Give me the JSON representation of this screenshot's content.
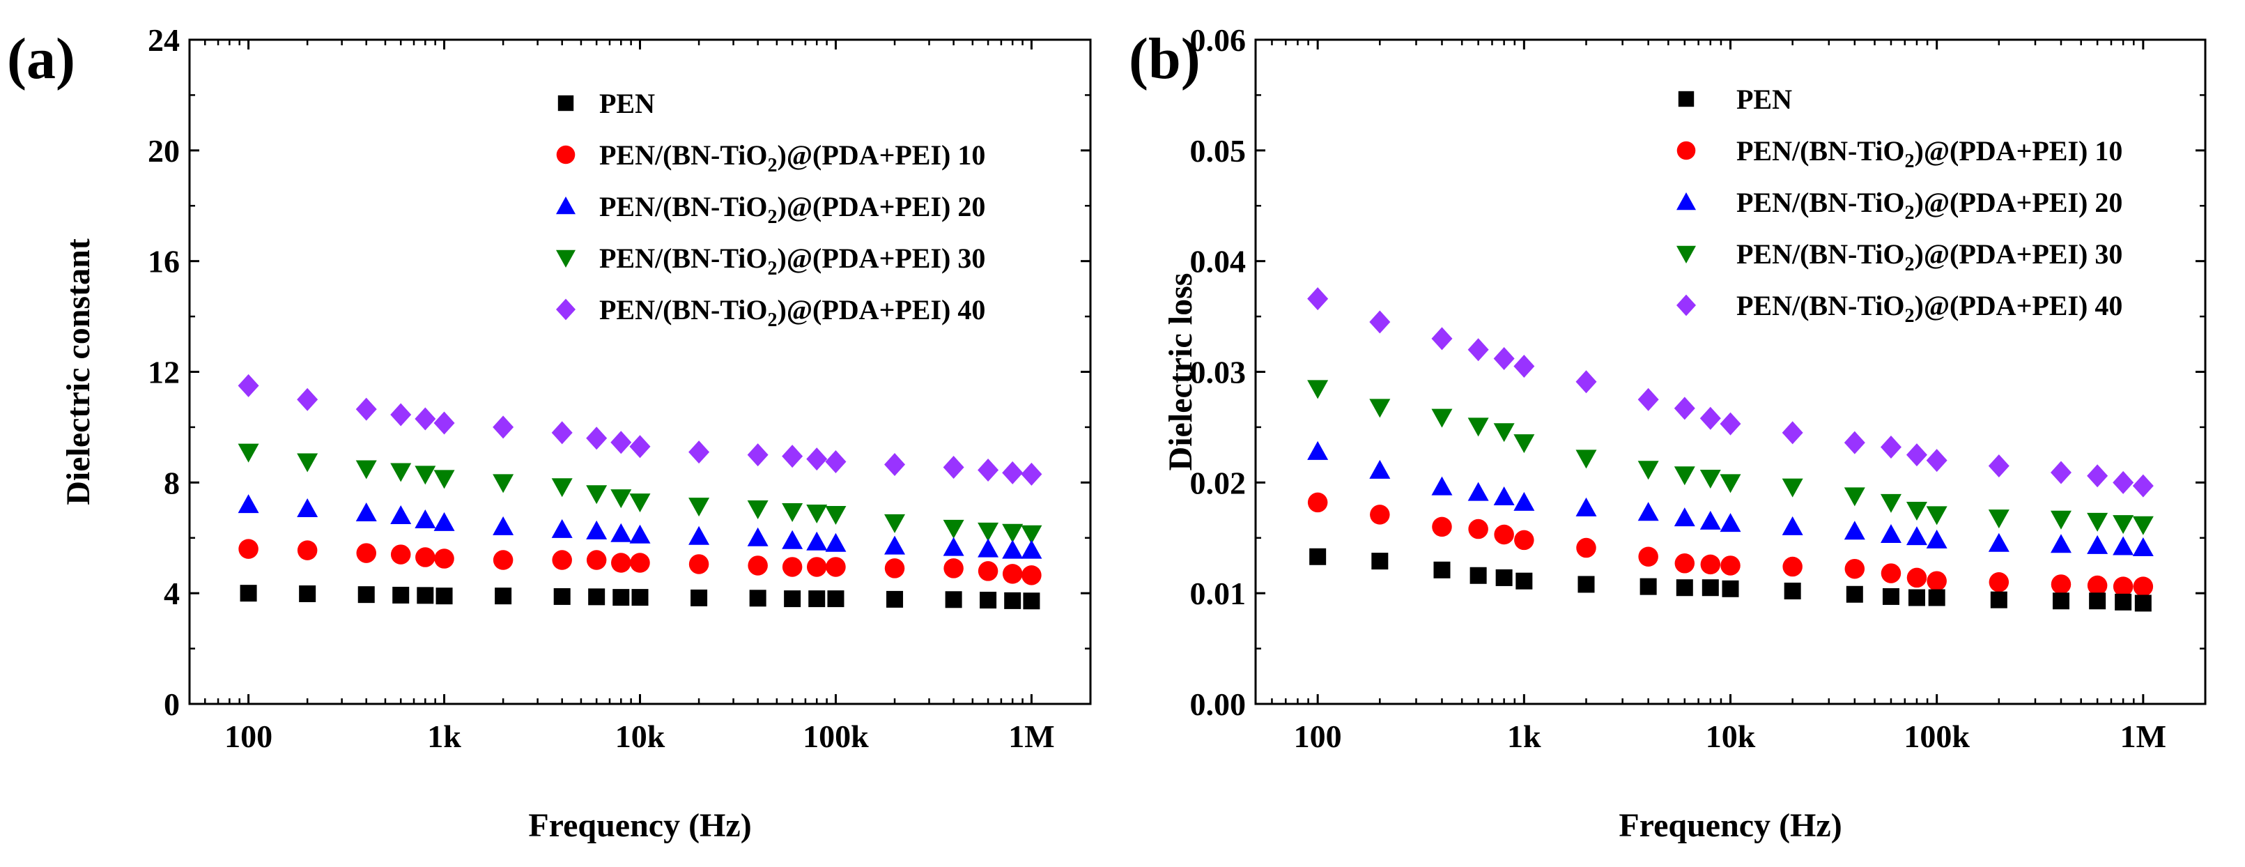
{
  "chart_data": [
    {
      "type": "scatter",
      "panel_label": "(a)",
      "xlabel": "Frequency (Hz)",
      "ylabel": "Dielectric constant",
      "xscale": "log",
      "xlim": [
        50,
        2000000
      ],
      "ylim": [
        0,
        24
      ],
      "xticks": [
        100,
        1000,
        10000,
        100000,
        1000000
      ],
      "xtick_labels": [
        "100",
        "1k",
        "10k",
        "100k",
        "1M"
      ],
      "yticks": [
        0,
        4,
        8,
        12,
        16,
        20,
        24
      ],
      "ytick_labels": [
        "0",
        "4",
        "8",
        "12",
        "16",
        "20",
        "24"
      ],
      "legend_position": "top-right",
      "x": [
        100,
        200,
        400,
        600,
        800,
        1000,
        2000,
        4000,
        6000,
        8000,
        10000,
        20000,
        40000,
        60000,
        80000,
        100000,
        200000,
        400000,
        600000,
        800000,
        1000000
      ],
      "series": [
        {
          "name": "PEN/(BN-TiO2)@(PDA+PEI) 40",
          "label_main": "PEN/(BN-TiO",
          "label_sub": "2",
          "label_tail": ")@(PDA+PEI) 40",
          "marker": "diamond",
          "color": "#9933ff",
          "values": [
            11.5,
            11.0,
            10.65,
            10.45,
            10.3,
            10.15,
            10.0,
            9.8,
            9.6,
            9.45,
            9.3,
            9.1,
            9.0,
            8.95,
            8.85,
            8.75,
            8.65,
            8.55,
            8.45,
            8.35,
            8.3
          ]
        },
        {
          "name": "PEN/(BN-TiO2)@(PDA+PEI) 30",
          "label_main": "PEN/(BN-TiO",
          "label_sub": "2",
          "label_tail": ")@(PDA+PEI) 30",
          "marker": "triangle-down",
          "color": "#008000",
          "values": [
            9.1,
            8.75,
            8.5,
            8.4,
            8.3,
            8.15,
            8.0,
            7.85,
            7.6,
            7.45,
            7.3,
            7.15,
            7.05,
            6.95,
            6.9,
            6.85,
            6.55,
            6.35,
            6.25,
            6.2,
            6.15
          ]
        },
        {
          "name": "PEN/(BN-TiO2)@(PDA+PEI) 20",
          "label_main": "PEN/(BN-TiO",
          "label_sub": "2",
          "label_tail": ")@(PDA+PEI) 20",
          "marker": "triangle-up",
          "color": "#0000ff",
          "values": [
            7.2,
            7.05,
            6.9,
            6.8,
            6.65,
            6.55,
            6.4,
            6.3,
            6.25,
            6.15,
            6.1,
            6.05,
            6.0,
            5.9,
            5.85,
            5.8,
            5.7,
            5.65,
            5.6,
            5.55,
            5.55
          ]
        },
        {
          "name": "PEN/(BN-TiO2)@(PDA+PEI) 10",
          "label_main": "PEN/(BN-TiO",
          "label_sub": "2",
          "label_tail": ")@(PDA+PEI) 10",
          "marker": "circle",
          "color": "#ff0000",
          "values": [
            5.6,
            5.55,
            5.45,
            5.4,
            5.3,
            5.25,
            5.2,
            5.2,
            5.2,
            5.1,
            5.1,
            5.05,
            5.0,
            4.95,
            4.95,
            4.95,
            4.9,
            4.9,
            4.8,
            4.7,
            4.65
          ]
        },
        {
          "name": "PEN",
          "label_main": "PEN",
          "label_sub": "",
          "label_tail": "",
          "marker": "square",
          "color": "#000000",
          "values": [
            4.0,
            3.98,
            3.95,
            3.93,
            3.92,
            3.9,
            3.9,
            3.88,
            3.87,
            3.85,
            3.85,
            3.83,
            3.82,
            3.8,
            3.8,
            3.8,
            3.78,
            3.77,
            3.75,
            3.73,
            3.72
          ]
        }
      ],
      "legend_order": [
        4,
        3,
        2,
        1,
        0
      ]
    },
    {
      "type": "scatter",
      "panel_label": "(b)",
      "xlabel": "Frequency (Hz)",
      "ylabel": "Dielectric loss",
      "xscale": "log",
      "xlim": [
        50,
        2000000
      ],
      "ylim": [
        0,
        0.06
      ],
      "xticks": [
        100,
        1000,
        10000,
        100000,
        1000000
      ],
      "xtick_labels": [
        "100",
        "1k",
        "10k",
        "100k",
        "1M"
      ],
      "yticks": [
        0,
        0.01,
        0.02,
        0.03,
        0.04,
        0.05,
        0.06
      ],
      "ytick_labels": [
        "0.00",
        "0.01",
        "0.02",
        "0.03",
        "0.04",
        "0.05",
        "0.06"
      ],
      "legend_position": "top-right",
      "x": [
        100,
        200,
        400,
        600,
        800,
        1000,
        2000,
        4000,
        6000,
        8000,
        10000,
        20000,
        40000,
        60000,
        80000,
        100000,
        200000,
        400000,
        600000,
        800000,
        1000000
      ],
      "series": [
        {
          "name": "PEN/(BN-TiO2)@(PDA+PEI) 40",
          "label_main": "PEN/(BN-TiO",
          "label_sub": "2",
          "label_tail": ")@(PDA+PEI) 40",
          "marker": "diamond",
          "color": "#9933ff",
          "values": [
            0.0366,
            0.0345,
            0.033,
            0.032,
            0.0312,
            0.0305,
            0.0291,
            0.0275,
            0.0267,
            0.0258,
            0.0253,
            0.0245,
            0.0236,
            0.0232,
            0.0225,
            0.022,
            0.0215,
            0.0209,
            0.0206,
            0.02,
            0.0197
          ]
        },
        {
          "name": "PEN/(BN-TiO2)@(PDA+PEI) 30",
          "label_main": "PEN/(BN-TiO",
          "label_sub": "2",
          "label_tail": ")@(PDA+PEI) 30",
          "marker": "triangle-down",
          "color": "#008000",
          "values": [
            0.0285,
            0.0268,
            0.0259,
            0.0251,
            0.0246,
            0.0236,
            0.0222,
            0.0212,
            0.0207,
            0.0204,
            0.02,
            0.0196,
            0.0188,
            0.0182,
            0.0175,
            0.0171,
            0.0168,
            0.0167,
            0.0165,
            0.0163,
            0.0162
          ]
        },
        {
          "name": "PEN/(BN-TiO2)@(PDA+PEI) 20",
          "label_main": "PEN/(BN-TiO",
          "label_sub": "2",
          "label_tail": ")@(PDA+PEI) 20",
          "marker": "triangle-up",
          "color": "#0000ff",
          "values": [
            0.0228,
            0.0211,
            0.0196,
            0.0191,
            0.0187,
            0.0182,
            0.0177,
            0.0173,
            0.0168,
            0.0165,
            0.0163,
            0.016,
            0.0156,
            0.0153,
            0.0151,
            0.0148,
            0.0145,
            0.0144,
            0.0143,
            0.0142,
            0.0141
          ]
        },
        {
          "name": "PEN/(BN-TiO2)@(PDA+PEI) 10",
          "label_main": "PEN/(BN-TiO",
          "label_sub": "2",
          "label_tail": ")@(PDA+PEI) 10",
          "marker": "circle",
          "color": "#ff0000",
          "values": [
            0.0182,
            0.0171,
            0.016,
            0.0158,
            0.0153,
            0.0148,
            0.0141,
            0.0133,
            0.0127,
            0.0126,
            0.0125,
            0.0124,
            0.0122,
            0.0118,
            0.0114,
            0.0111,
            0.011,
            0.0108,
            0.0107,
            0.0106,
            0.0106
          ]
        },
        {
          "name": "PEN",
          "label_main": "PEN",
          "label_sub": "",
          "label_tail": "",
          "marker": "square",
          "color": "#000000",
          "values": [
            0.0133,
            0.0129,
            0.0121,
            0.0116,
            0.0114,
            0.0111,
            0.0108,
            0.0106,
            0.0105,
            0.0105,
            0.0104,
            0.0102,
            0.0099,
            0.0097,
            0.0096,
            0.0096,
            0.0094,
            0.0093,
            0.0093,
            0.0092,
            0.0091
          ]
        }
      ],
      "legend_order": [
        4,
        3,
        2,
        1,
        0
      ]
    }
  ]
}
